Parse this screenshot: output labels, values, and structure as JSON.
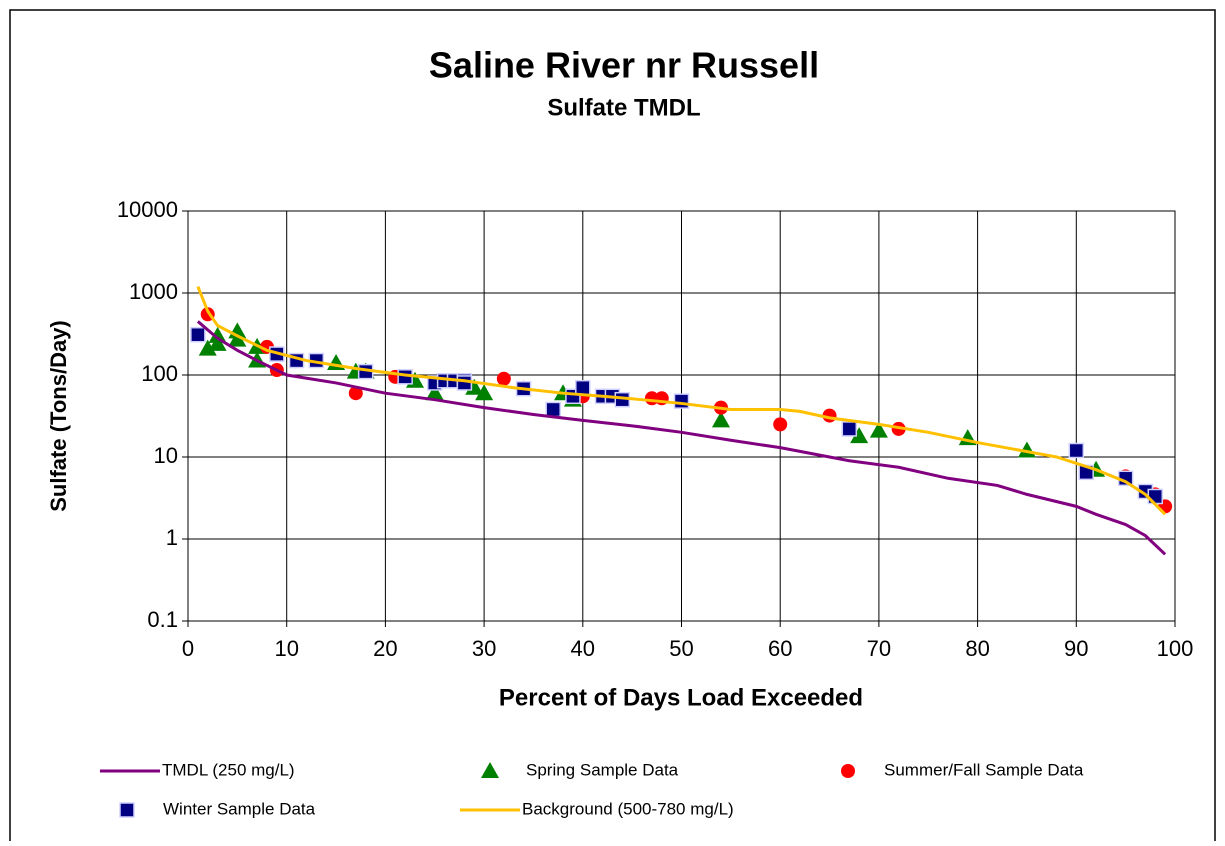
{
  "chart_data": {
    "type": "line",
    "title": "Saline River nr Russell",
    "subtitle": "Sulfate TMDL",
    "x_label": "Percent of Days Load Exceeded",
    "y_label": "Sulfate (Tons/Day)",
    "xlim": [
      0,
      100
    ],
    "xticks": [
      0,
      10,
      20,
      30,
      40,
      50,
      60,
      70,
      80,
      90,
      100
    ],
    "ylim": [
      0.1,
      10000
    ],
    "yticks": [
      0.1,
      1,
      10,
      100,
      1000,
      10000
    ],
    "y_log": true,
    "grid": true,
    "series": [
      {
        "name": "TMDL (250 mg/L)",
        "kind": "line",
        "color": "#800080",
        "x": [
          1,
          3,
          5,
          7,
          10,
          15,
          20,
          25,
          30,
          35,
          40,
          45,
          50,
          55,
          60,
          65,
          67,
          72,
          77,
          82,
          85,
          90,
          92,
          95,
          97,
          99
        ],
        "values": [
          450,
          280,
          200,
          150,
          100,
          80,
          60,
          50,
          40,
          33,
          28,
          24,
          20,
          16,
          13,
          10,
          9,
          7.5,
          5.5,
          4.5,
          3.5,
          2.5,
          2,
          1.5,
          1.1,
          0.65
        ]
      },
      {
        "name": "Spring Sample Data",
        "kind": "scatter",
        "marker": "triangle",
        "color": "#008000",
        "x": [
          2,
          3,
          3,
          5,
          5,
          7,
          7,
          15,
          18,
          17,
          23,
          25,
          29,
          30,
          38,
          39,
          54,
          68,
          70,
          79,
          85,
          92
        ],
        "values": [
          210,
          300,
          240,
          340,
          270,
          220,
          150,
          140,
          110,
          110,
          85,
          60,
          70,
          60,
          60,
          50,
          28,
          18,
          21,
          17,
          12,
          7
        ]
      },
      {
        "name": "Summer/Fall Sample Data",
        "kind": "scatter",
        "marker": "circle",
        "color": "#ff0000",
        "x": [
          2,
          8,
          9,
          17,
          21,
          32,
          34,
          40,
          47,
          48,
          54,
          60,
          65,
          72,
          91,
          95,
          98,
          99
        ],
        "values": [
          550,
          220,
          115,
          60,
          95,
          90,
          70,
          55,
          52,
          52,
          40,
          25,
          32,
          22,
          6.5,
          5.8,
          3.5,
          2.5
        ]
      },
      {
        "name": "Winter Sample Data",
        "kind": "scatter",
        "marker": "square",
        "color": "#000080",
        "x": [
          1,
          9,
          11,
          13,
          18,
          22,
          25,
          26,
          27,
          28,
          28,
          34,
          37,
          39,
          40,
          42,
          43,
          44,
          50,
          67,
          90,
          91,
          95,
          97,
          98
        ],
        "values": [
          310,
          180,
          150,
          150,
          110,
          95,
          80,
          85,
          85,
          85,
          80,
          68,
          38,
          55,
          70,
          55,
          55,
          50,
          48,
          22,
          12,
          6.5,
          5.5,
          3.8,
          3.3
        ]
      },
      {
        "name": "Background (500-780 mg/L)",
        "kind": "line",
        "color": "#ffc000",
        "x": [
          1,
          2,
          3,
          5,
          8,
          12,
          17,
          22,
          28,
          33,
          38,
          42,
          46,
          50,
          55,
          60,
          62,
          65,
          70,
          75,
          80,
          88,
          92,
          95,
          97,
          99
        ],
        "values": [
          1200,
          600,
          400,
          300,
          200,
          150,
          120,
          100,
          85,
          70,
          60,
          55,
          50,
          45,
          38,
          38,
          36,
          30,
          25,
          20,
          15,
          10,
          7,
          5,
          3.5,
          2
        ]
      }
    ]
  }
}
